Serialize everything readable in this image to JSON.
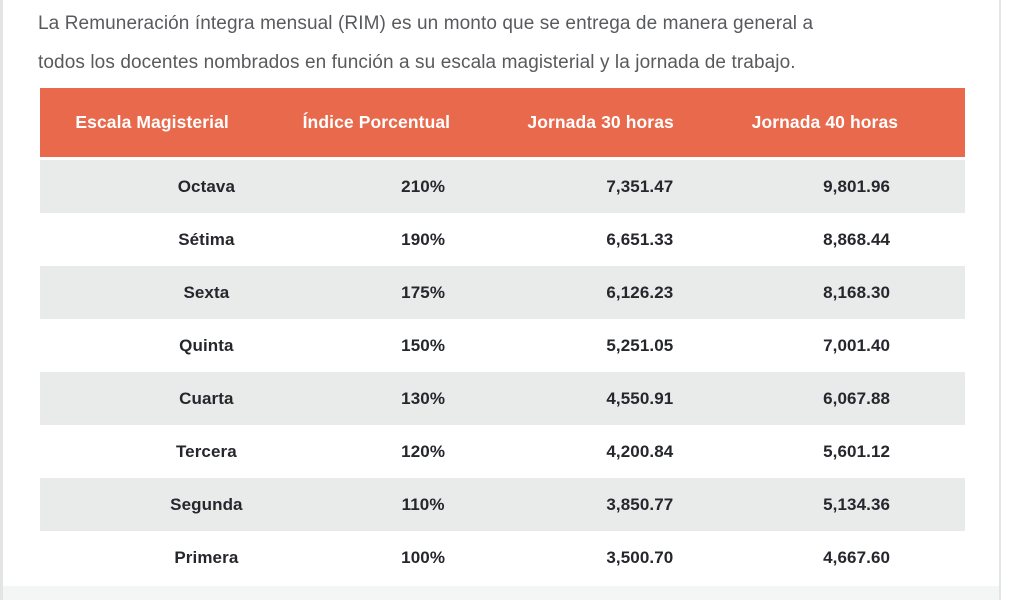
{
  "intro": {
    "lines": [
      "La Remuneración íntegra mensual (RIM) es un monto que se entrega de manera general a",
      "todos los docentes nombrados en función a su escala magisterial y la jornada de trabajo."
    ]
  },
  "table": {
    "columns": [
      "Escala Magisterial",
      "Índice Porcentual",
      "Jornada 30 horas",
      "Jornada 40 horas"
    ],
    "rows": [
      [
        "Octava",
        "210%",
        "7,351.47",
        "9,801.96"
      ],
      [
        "Sétima",
        "190%",
        "6,651.33",
        "8,868.44"
      ],
      [
        "Sexta",
        "175%",
        "6,126.23",
        "8,168.30"
      ],
      [
        "Quinta",
        "150%",
        "5,251.05",
        "7,001.40"
      ],
      [
        "Cuarta",
        "130%",
        "4,550.91",
        "6,067.88"
      ],
      [
        "Tercera",
        "120%",
        "4,200.84",
        "5,601.12"
      ],
      [
        "Segunda",
        "110%",
        "3,850.77",
        "5,134.36"
      ],
      [
        "Primera",
        "100%",
        "3,500.70",
        "4,667.60"
      ]
    ]
  },
  "colors": {
    "header_bg": "#E8694B",
    "header_text": "#FFFFFF",
    "row_alt_bg": "#E9EBEA",
    "row_bg": "#FFFFFF",
    "cell_text": "#25272C",
    "paragraph_text": "#595A5D"
  }
}
